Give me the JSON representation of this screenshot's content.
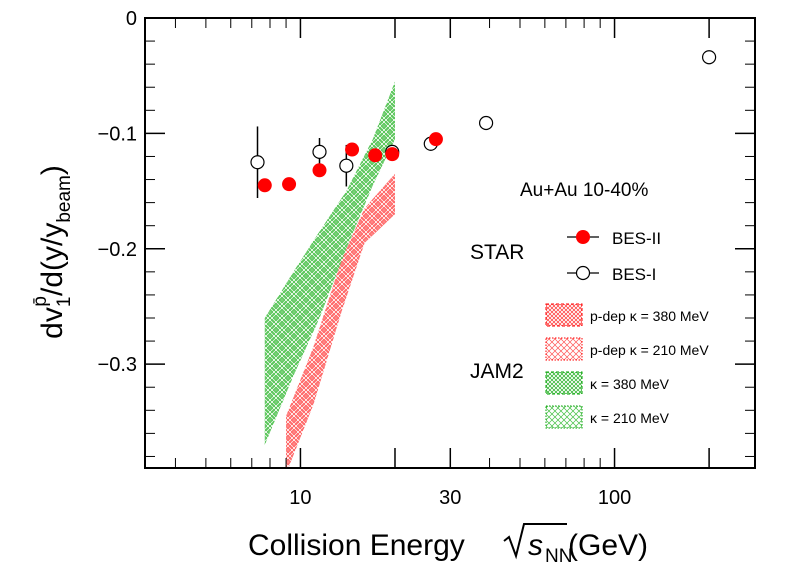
{
  "chart_data": {
    "type": "scatter",
    "x_scale": "log",
    "xlim": [
      3.2,
      280
    ],
    "ylim": [
      -0.39,
      0
    ],
    "x_ticks": [
      {
        "value": 10,
        "label": "10"
      },
      {
        "value": 30,
        "label": "30"
      },
      {
        "value": 100,
        "label": "100"
      }
    ],
    "y_ticks": [
      {
        "value": 0,
        "label": "0"
      },
      {
        "value": -0.1,
        "label": "−0.1"
      },
      {
        "value": -0.2,
        "label": "−0.2"
      },
      {
        "value": -0.3,
        "label": "−0.3"
      }
    ],
    "xlabel": {
      "main": "Collision Energy ",
      "sub": "NN",
      "tail": " (GeV)"
    },
    "ylabel": {
      "main": "dv",
      "sub": "1",
      "sup": "p̄",
      "mid": "/d(y/y",
      "sub2": "beam",
      "tail": ")"
    },
    "system_label": "Au+Au 10-40%",
    "group_labels": {
      "data": "STAR",
      "model": "JAM2"
    },
    "series": [
      {
        "name": "BES-II",
        "marker": "filled-circle",
        "color": "#ff0000",
        "points": [
          {
            "x": 7.7,
            "y": -0.145
          },
          {
            "x": 9.2,
            "y": -0.144
          },
          {
            "x": 11.5,
            "y": -0.132
          },
          {
            "x": 14.6,
            "y": -0.114
          },
          {
            "x": 17.3,
            "y": -0.119
          },
          {
            "x": 19.6,
            "y": -0.118
          },
          {
            "x": 27,
            "y": -0.105
          }
        ]
      },
      {
        "name": "BES-I",
        "marker": "open-circle",
        "color": "#000000",
        "points": [
          {
            "x": 7.3,
            "y": -0.125,
            "err": 0.031
          },
          {
            "x": 11.5,
            "y": -0.116,
            "err": 0.012
          },
          {
            "x": 14.0,
            "y": -0.128,
            "err": 0.018
          },
          {
            "x": 19.6,
            "y": -0.116,
            "err": 0.006
          },
          {
            "x": 26,
            "y": -0.109,
            "err": 0.006
          },
          {
            "x": 39,
            "y": -0.091,
            "err": 0.002
          },
          {
            "x": 200,
            "y": -0.034,
            "err": 0.002
          }
        ]
      }
    ],
    "bands": [
      {
        "name": "p-dep κ = 380 MeV",
        "color": "#ff0000",
        "pattern": "dense",
        "x": [
          9.0,
          11.0,
          13.5,
          16.0,
          20.0
        ],
        "y_low": [
          -0.395,
          -0.335,
          -0.255,
          -0.195,
          -0.17
        ],
        "y_high": [
          -0.345,
          -0.285,
          -0.21,
          -0.165,
          -0.135
        ]
      },
      {
        "name": "p-dep κ = 210 MeV",
        "color": "#ff0000",
        "pattern": "loose",
        "x": [
          9.0,
          11.0,
          13.5,
          16.0,
          20.0
        ],
        "y_low": [
          -0.395,
          -0.335,
          -0.255,
          -0.195,
          -0.17
        ],
        "y_high": [
          -0.345,
          -0.285,
          -0.21,
          -0.165,
          -0.135
        ]
      },
      {
        "name": "κ = 380 MeV",
        "color": "#00b000",
        "pattern": "dense",
        "x": [
          7.7,
          9.5,
          11.5,
          14.0,
          17.0,
          20.0
        ],
        "y_low": [
          -0.37,
          -0.31,
          -0.26,
          -0.2,
          -0.145,
          -0.105
        ],
        "y_high": [
          -0.26,
          -0.22,
          -0.185,
          -0.15,
          -0.105,
          -0.055
        ]
      },
      {
        "name": "κ = 210 MeV",
        "color": "#00b000",
        "pattern": "loose",
        "x": [
          7.7,
          9.5,
          11.5,
          14.0,
          17.0,
          20.0
        ],
        "y_low": [
          -0.37,
          -0.31,
          -0.26,
          -0.2,
          -0.145,
          -0.105
        ],
        "y_high": [
          -0.26,
          -0.22,
          -0.185,
          -0.15,
          -0.105,
          -0.055
        ]
      }
    ]
  }
}
